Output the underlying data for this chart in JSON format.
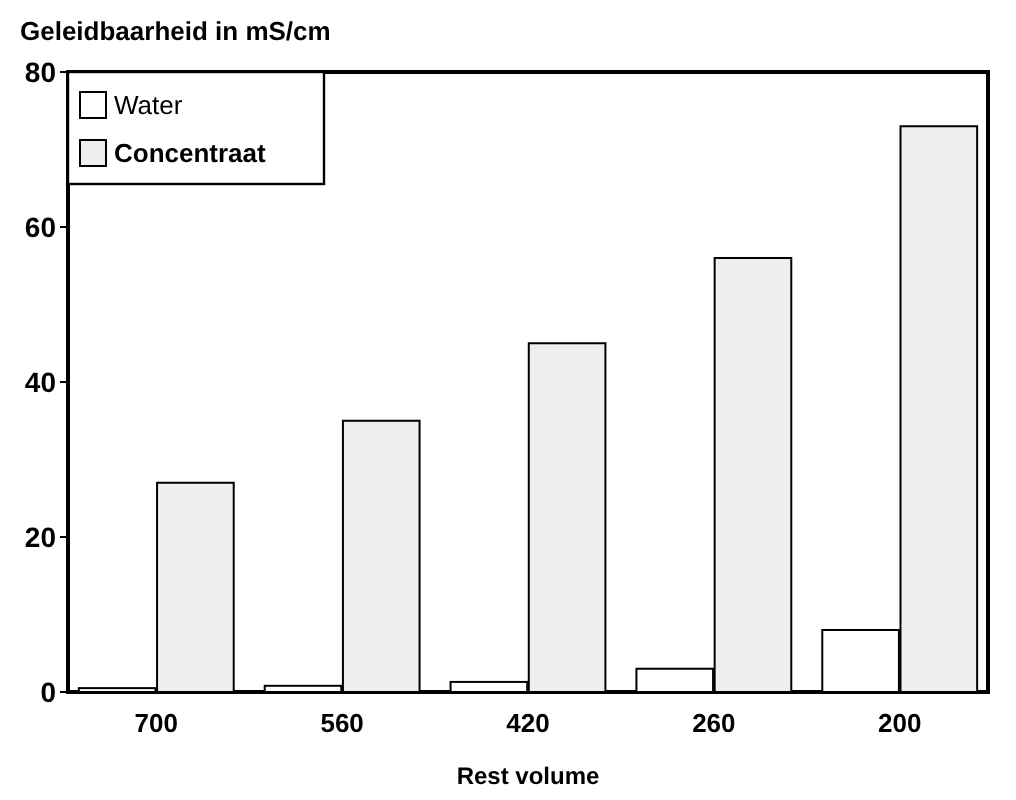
{
  "chart_data": {
    "type": "bar",
    "title": "Geleidbaarheid in mS/cm",
    "xlabel": "Rest volume",
    "categories": [
      "700",
      "560",
      "420",
      "260",
      "200"
    ],
    "series": [
      {
        "name": "Water",
        "color": "#ffffff",
        "values": [
          0.5,
          0.8,
          1.3,
          3,
          8
        ]
      },
      {
        "name": "Concentraat",
        "color": "#eeeeee",
        "values": [
          27,
          35,
          45,
          56,
          73
        ]
      }
    ],
    "ylim": [
      0,
      80
    ],
    "yticks": [
      0,
      20,
      40,
      60,
      80
    ],
    "grid": false,
    "legend": "top left"
  }
}
